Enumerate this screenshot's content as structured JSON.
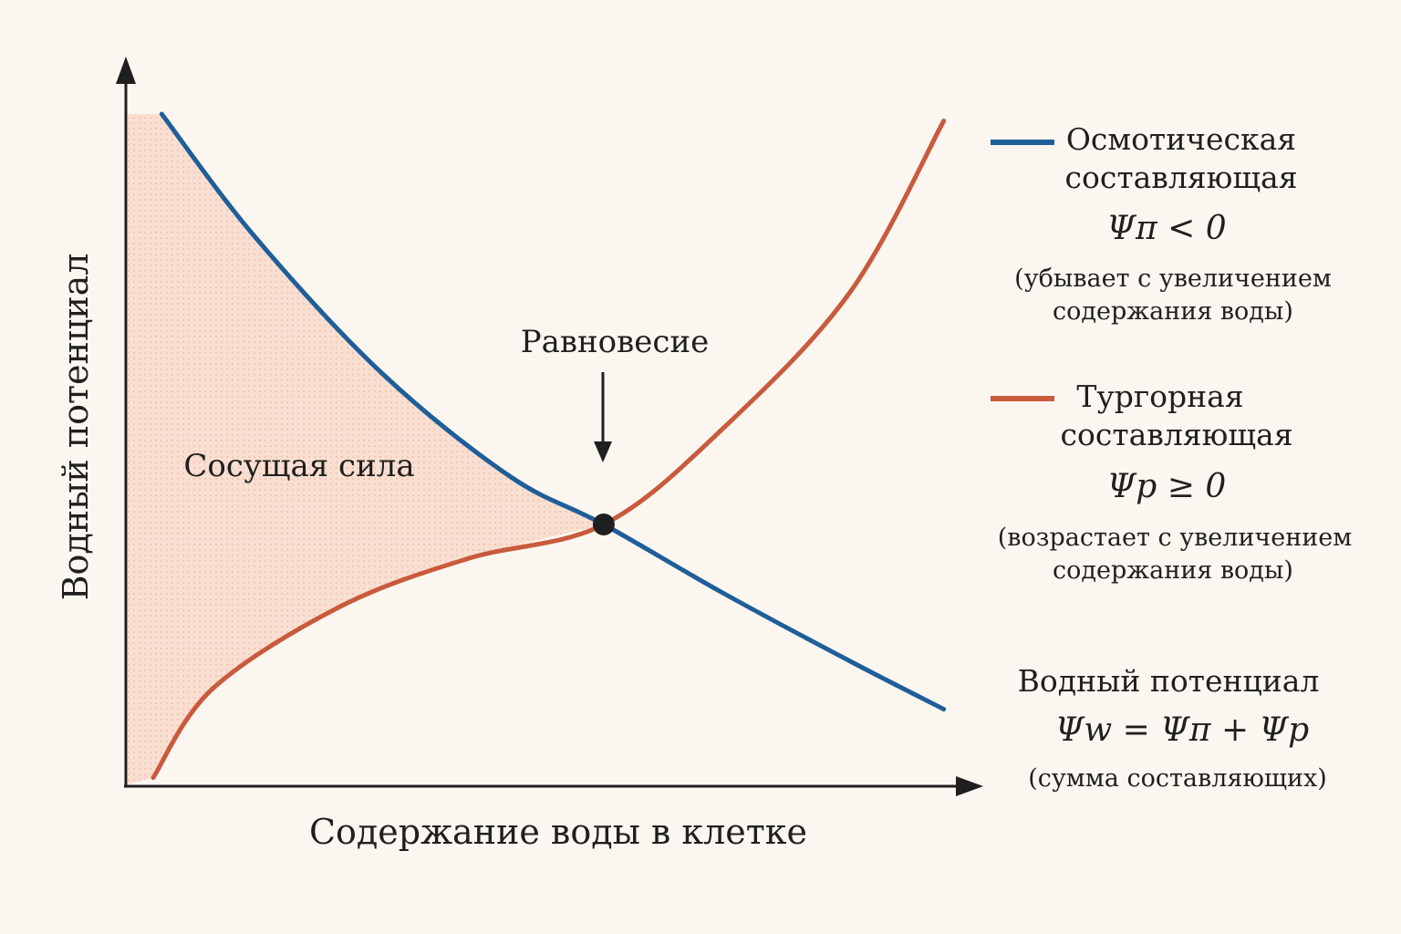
{
  "chart_data": {
    "type": "line",
    "xlabel": "Содержание воды в клетке",
    "ylabel": "Водный потенциал",
    "x_range": [
      0,
      1
    ],
    "y_range": [
      0,
      1
    ],
    "grid": false,
    "legend_position": "right",
    "series": [
      {
        "name": "Осмотическая составляющая",
        "color": "#1f5f99",
        "x": [
          0.04,
          0.15,
          0.3,
          0.45,
          0.56,
          0.7,
          0.85,
          0.96
        ],
        "y": [
          0.98,
          0.8,
          0.6,
          0.45,
          0.38,
          0.28,
          0.18,
          0.11
        ]
      },
      {
        "name": "Тургорная составляющая",
        "color": "#c95a3c",
        "x": [
          0.03,
          0.1,
          0.25,
          0.4,
          0.56,
          0.7,
          0.85,
          0.96
        ],
        "y": [
          0.01,
          0.14,
          0.26,
          0.33,
          0.38,
          0.52,
          0.72,
          0.97
        ]
      }
    ],
    "equilibrium": {
      "label": "Равновесие",
      "x": 0.56,
      "y": 0.38
    },
    "shaded_region": {
      "label": "Сосущая сила",
      "color": "#f5c9b3"
    }
  },
  "legend": {
    "osmotic": {
      "title_line1": "Осмотическая",
      "title_line2": "составляющая",
      "formula": "Ψπ < 0",
      "note_line1": "(убывает с увеличением",
      "note_line2": "содержания воды)"
    },
    "turgor": {
      "title_line1": "Тургорная",
      "title_line2": "составляющая",
      "formula": "Ψp ≥ 0",
      "note_line1": "(возрастает с увеличением",
      "note_line2": "содержания воды)"
    },
    "total": {
      "title": "Водный потенциал",
      "formula": "Ψw = Ψπ + Ψp",
      "note": "(сумма составляющих)"
    }
  }
}
